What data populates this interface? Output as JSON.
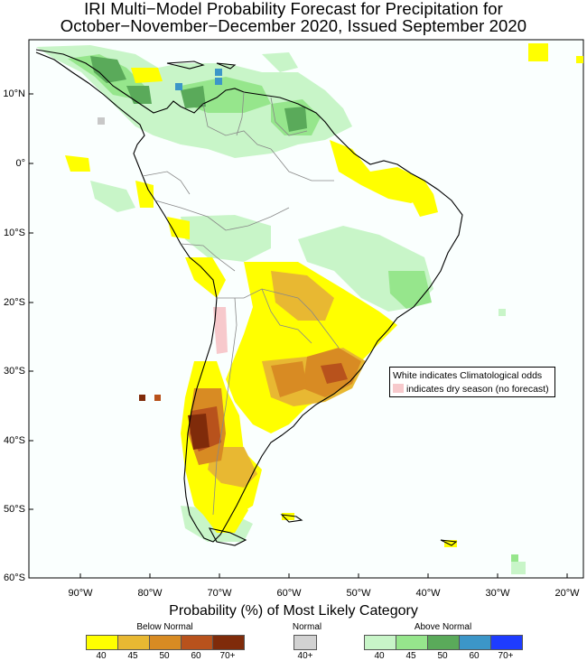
{
  "title_line1": "IRI Multi−Model Probability Forecast for Precipitation for",
  "title_line2": "October−November−December 2020, Issued September 2020",
  "lat_labels": [
    "10°N",
    "0°",
    "10°S",
    "20°S",
    "30°S",
    "40°S",
    "50°S",
    "60°S"
  ],
  "lon_labels": [
    "90°W",
    "80°W",
    "70°W",
    "60°W",
    "50°W",
    "40°W",
    "30°W",
    "20°W"
  ],
  "legend": {
    "title": "Probability (%) of Most Likely Category",
    "below_normal": {
      "label": "Below Normal",
      "ticks": [
        "40",
        "45",
        "50",
        "60",
        "70+"
      ],
      "colors": [
        "#ffff00",
        "#e8b832",
        "#d88b23",
        "#b8521c",
        "#7f2b0a"
      ]
    },
    "normal": {
      "label": "Normal",
      "ticks": [
        "40+"
      ],
      "colors": [
        "#d2d2d2"
      ]
    },
    "above_normal": {
      "label": "Above Normal",
      "ticks": [
        "40",
        "45",
        "50",
        "60",
        "70+"
      ],
      "colors": [
        "#c8f5c8",
        "#96e68c",
        "#5aaa5a",
        "#3c96c8",
        "#1e3cff"
      ]
    }
  },
  "note": {
    "line1": "White indicates Climatological odds",
    "line2": "indicates dry season (no forecast)",
    "dry_color": "#f7c9cc"
  }
}
